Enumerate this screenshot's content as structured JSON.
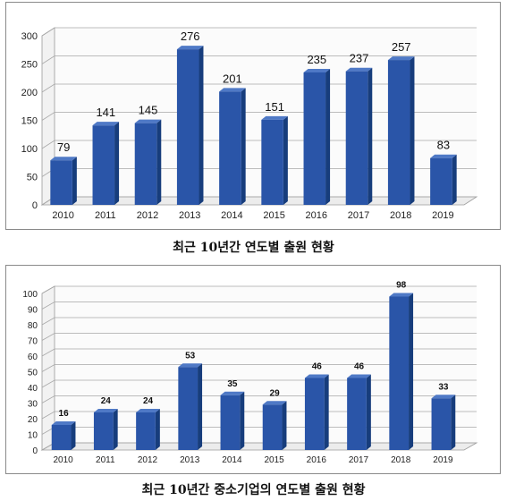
{
  "charts": [
    {
      "caption": "최근 10년간 연도별 출원 현황",
      "chart_data": {
        "type": "bar",
        "title": "",
        "categories": [
          "2010",
          "2011",
          "2012",
          "2013",
          "2014",
          "2015",
          "2016",
          "2017",
          "2018",
          "2019"
        ],
        "values": [
          79,
          141,
          145,
          276,
          201,
          151,
          235,
          237,
          257,
          83
        ],
        "yticks": [
          0,
          50,
          100,
          150,
          200,
          250,
          300
        ],
        "ylim": [
          0,
          300
        ],
        "grid": true,
        "bar_color": "#2a55a8"
      }
    },
    {
      "caption": "최근 10년간 중소기업의 연도별 출원 현황",
      "chart_data": {
        "type": "bar",
        "title": "",
        "categories": [
          "2010",
          "2011",
          "2012",
          "2013",
          "2014",
          "2015",
          "2016",
          "2017",
          "2018",
          "2019"
        ],
        "values": [
          16,
          24,
          24,
          53,
          35,
          29,
          46,
          46,
          98,
          33
        ],
        "yticks": [
          0,
          10,
          20,
          30,
          40,
          50,
          60,
          70,
          80,
          90,
          100
        ],
        "ylim": [
          0,
          100
        ],
        "grid": true,
        "bar_color": "#2a55a8"
      }
    }
  ]
}
